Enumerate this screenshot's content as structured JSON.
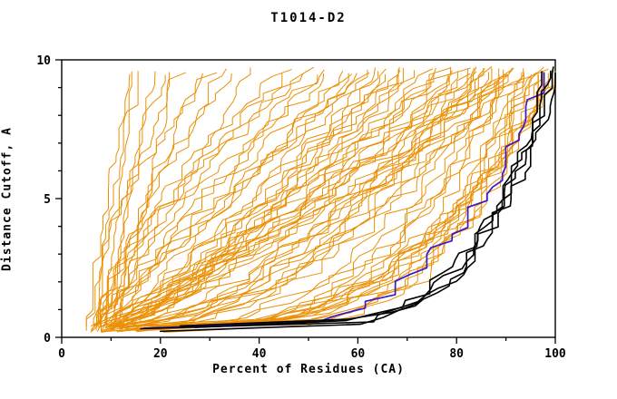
{
  "chart_data": {
    "type": "line",
    "title": "T1014-D2",
    "xlabel": "Percent of Residues (CA)",
    "ylabel": "Distance Cutoff, A",
    "xlim": [
      0,
      100
    ],
    "ylim": [
      0,
      10
    ],
    "x_ticks": [
      0,
      20,
      40,
      60,
      80,
      100
    ],
    "x_minor_step": 10,
    "y_ticks": [
      0,
      5,
      10
    ],
    "y_minor_step": 1,
    "grid": false,
    "legend_position": "none",
    "colors": {
      "prediction_orange": "#eb9005",
      "highlight_black": "#000000",
      "best_model_blue": "#3818cf",
      "axis": "#000000",
      "background": "#ffffff"
    },
    "curve_format": [
      "x_start_percent",
      "x_end_percent",
      "shape_exponent",
      "seed"
    ],
    "series": {
      "predictions_orange": [
        [
          12,
          96,
          0.2,
          1
        ],
        [
          14,
          95,
          0.22,
          2
        ],
        [
          15,
          94,
          0.25,
          3
        ],
        [
          16,
          93,
          0.24,
          4
        ],
        [
          13,
          92,
          0.28,
          5
        ],
        [
          17,
          95,
          0.3,
          6
        ],
        [
          18,
          97,
          0.26,
          7
        ],
        [
          11,
          90,
          0.32,
          8
        ],
        [
          15,
          91,
          0.35,
          9
        ],
        [
          19,
          96,
          0.33,
          10
        ],
        [
          16,
          89,
          0.3,
          11
        ],
        [
          14,
          88,
          0.38,
          12
        ],
        [
          20,
          94,
          0.28,
          13
        ],
        [
          13,
          97,
          0.23,
          14
        ],
        [
          18,
          100,
          0.35,
          15
        ],
        [
          22,
          100,
          0.42,
          16
        ],
        [
          25,
          99,
          0.4,
          17
        ],
        [
          21,
          98,
          0.34,
          18
        ],
        [
          8,
          85,
          0.45,
          19
        ],
        [
          10,
          82,
          0.55,
          20
        ],
        [
          12,
          80,
          0.6,
          21
        ],
        [
          9,
          78,
          0.7,
          22
        ],
        [
          11,
          88,
          0.5,
          23
        ],
        [
          14,
          84,
          0.65,
          24
        ],
        [
          7,
          76,
          0.75,
          25
        ],
        [
          13,
          86,
          0.58,
          26
        ],
        [
          10,
          79,
          0.8,
          27
        ],
        [
          15,
          83,
          0.52,
          28
        ],
        [
          8,
          81,
          0.68,
          29
        ],
        [
          12,
          77,
          0.85,
          30
        ],
        [
          9,
          87,
          0.48,
          31
        ],
        [
          16,
          85,
          0.62,
          32
        ],
        [
          11,
          75,
          0.9,
          33
        ],
        [
          13,
          89,
          0.46,
          34
        ],
        [
          7,
          80,
          0.72,
          35
        ],
        [
          14,
          78,
          0.88,
          36
        ],
        [
          10,
          86,
          0.55,
          37
        ],
        [
          12,
          82,
          0.75,
          38
        ],
        [
          15,
          90,
          0.44,
          39
        ],
        [
          9,
          84,
          0.6,
          40
        ],
        [
          6,
          70,
          0.7,
          41
        ],
        [
          8,
          65,
          0.9,
          42
        ],
        [
          7,
          60,
          1.1,
          43
        ],
        [
          9,
          55,
          1.3,
          44
        ],
        [
          10,
          68,
          0.8,
          45
        ],
        [
          6,
          50,
          1.5,
          46
        ],
        [
          8,
          58,
          1.0,
          47
        ],
        [
          7,
          72,
          0.75,
          48
        ],
        [
          11,
          62,
          0.95,
          49
        ],
        [
          9,
          48,
          1.4,
          50
        ],
        [
          6,
          66,
          0.85,
          51
        ],
        [
          10,
          52,
          1.25,
          52
        ],
        [
          8,
          70,
          0.9,
          53
        ],
        [
          7,
          45,
          1.6,
          54
        ],
        [
          12,
          64,
          0.8,
          55
        ],
        [
          9,
          57,
          1.15,
          56
        ],
        [
          6,
          61,
          1.0,
          57
        ],
        [
          11,
          69,
          0.78,
          58
        ],
        [
          8,
          53,
          1.35,
          59
        ],
        [
          10,
          59,
          1.05,
          60
        ],
        [
          7,
          67,
          0.82,
          61
        ],
        [
          9,
          46,
          1.5,
          62
        ],
        [
          5,
          13,
          1.2,
          63
        ],
        [
          6,
          16,
          1.5,
          64
        ],
        [
          7,
          14,
          0.9,
          65
        ],
        [
          8,
          20,
          1.3,
          66
        ],
        [
          9,
          18,
          1.1,
          67
        ],
        [
          6,
          24,
          1.6,
          68
        ],
        [
          10,
          22,
          0.8,
          69
        ],
        [
          5,
          30,
          1.8,
          70
        ],
        [
          7,
          35,
          1.4,
          71
        ],
        [
          8,
          28,
          1.2,
          72
        ],
        [
          6,
          38,
          1.0,
          73
        ],
        [
          9,
          33,
          1.5,
          74
        ],
        [
          8,
          93,
          1.0,
          75
        ],
        [
          10,
          96,
          0.9,
          76
        ],
        [
          12,
          91,
          1.1,
          77
        ],
        [
          9,
          98,
          0.95,
          78
        ]
      ],
      "highlighted_black": [
        [
          16,
          97,
          0.16,
          201
        ],
        [
          20,
          98,
          0.18,
          202
        ],
        [
          24,
          99,
          0.2,
          203
        ],
        [
          27,
          98,
          0.22,
          204
        ]
      ],
      "best_model_blue": [
        [
          15,
          97,
          0.24,
          301
        ]
      ]
    }
  }
}
